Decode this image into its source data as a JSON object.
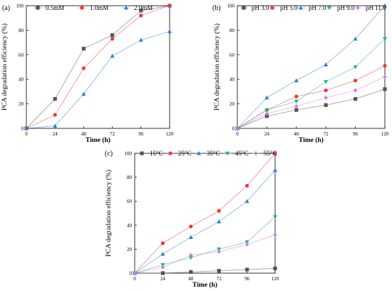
{
  "chart_data": [
    {
      "type": "line",
      "panel_label": "(a)",
      "xlabel": "Time (h)",
      "ylabel": "PCA degradation efficiency (%)",
      "x": [
        0,
        24,
        48,
        72,
        96,
        120
      ],
      "xlim": [
        0,
        120
      ],
      "ylim": [
        0,
        100
      ],
      "xticks": [
        "0",
        "24",
        "48",
        "72",
        "96",
        "120"
      ],
      "yticks": [
        "0",
        "20",
        "40",
        "60",
        "80",
        "100"
      ],
      "legend_position": "top",
      "series": [
        {
          "name": "0.5mM",
          "color": "#555555",
          "marker": "square",
          "values": [
            0,
            24,
            65,
            76,
            96,
            100
          ]
        },
        {
          "name": "1.0mM",
          "color": "#e8383d",
          "marker": "circle",
          "values": [
            0,
            11,
            49,
            73,
            92,
            100
          ]
        },
        {
          "name": "2.0mM",
          "color": "#2f7fd3",
          "marker": "triangle-up",
          "values": [
            0,
            2,
            28,
            59,
            72,
            79
          ]
        }
      ]
    },
    {
      "type": "line",
      "panel_label": "(b)",
      "xlabel": "Time (h)",
      "ylabel": "PCA degradation efficiency (%)",
      "x": [
        0,
        24,
        48,
        72,
        96,
        120
      ],
      "xlim": [
        0,
        120
      ],
      "ylim": [
        0,
        100
      ],
      "xticks": [
        "0",
        "24",
        "48",
        "72",
        "96",
        "120"
      ],
      "yticks": [
        "0",
        "20",
        "40",
        "60",
        "80",
        "100"
      ],
      "legend_position": "top",
      "series": [
        {
          "name": "pH 3.0",
          "color": "#555555",
          "marker": "square",
          "values": [
            0,
            10,
            15,
            19,
            24,
            32
          ]
        },
        {
          "name": "pH 5.0",
          "color": "#e8383d",
          "marker": "circle",
          "values": [
            0,
            15,
            26,
            31,
            39,
            51
          ]
        },
        {
          "name": "pH 7.0",
          "color": "#2f7fd3",
          "marker": "triangle-up",
          "values": [
            0,
            25,
            39,
            52,
            73,
            100
          ]
        },
        {
          "name": "pH 9.0",
          "color": "#2ab27b",
          "marker": "triangle-down",
          "values": [
            0,
            15,
            22,
            38,
            50,
            73
          ]
        },
        {
          "name": "pH 11.0",
          "color": "#c77fe0",
          "marker": "diamond",
          "values": [
            0,
            12,
            18,
            25,
            31,
            42
          ]
        }
      ]
    },
    {
      "type": "line",
      "panel_label": "(c)",
      "xlabel": "Time (h)",
      "ylabel": "PCA degradation efficiency (%)",
      "x": [
        0,
        24,
        48,
        72,
        96,
        120
      ],
      "xlim": [
        0,
        120
      ],
      "ylim": [
        0,
        100
      ],
      "xticks": [
        "0",
        "24",
        "48",
        "72",
        "96",
        "120"
      ],
      "yticks": [
        "0",
        "20",
        "40",
        "60",
        "80",
        "100"
      ],
      "legend_position": "top",
      "series": [
        {
          "name": "15°C",
          "color": "#555555",
          "marker": "square",
          "values": [
            0,
            0,
            1,
            2,
            3,
            4
          ]
        },
        {
          "name": "25°C",
          "color": "#e8383d",
          "marker": "circle",
          "values": [
            0,
            25,
            39,
            52,
            73,
            100
          ]
        },
        {
          "name": "35°C",
          "color": "#2f7fd3",
          "marker": "triangle-up",
          "values": [
            0,
            16,
            30,
            43,
            60,
            86
          ]
        },
        {
          "name": "45°C",
          "color": "#2ab27b",
          "marker": "triangle-down",
          "values": [
            0,
            7,
            13,
            20,
            26,
            47
          ]
        },
        {
          "name": "55°C",
          "color": "#c77fe0",
          "marker": "diamond",
          "values": [
            0,
            5,
            15,
            18,
            24,
            32
          ]
        }
      ]
    }
  ]
}
